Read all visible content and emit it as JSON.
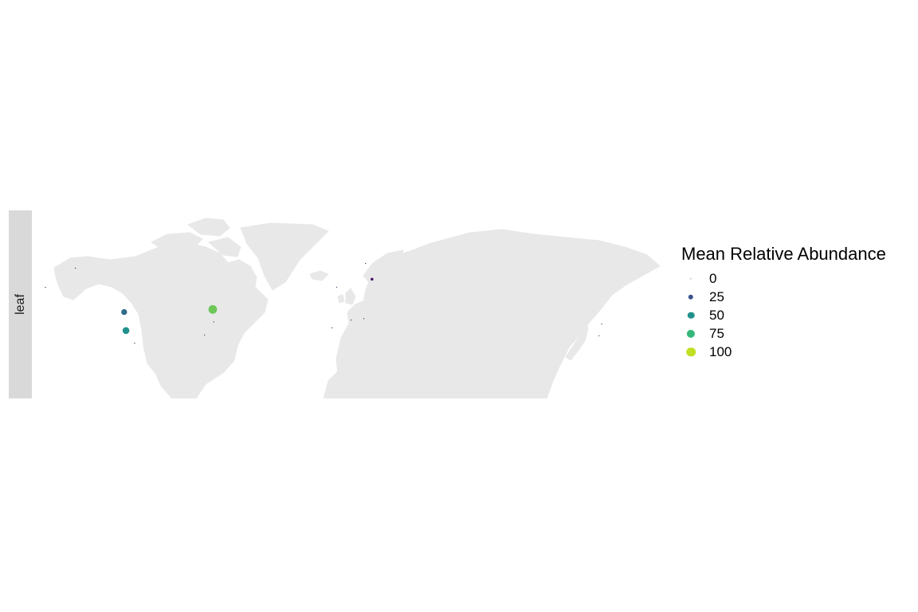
{
  "facet": {
    "label": "leaf"
  },
  "legend": {
    "title": "Mean Relative Abundance",
    "items": [
      {
        "label": "0",
        "value": 0,
        "color": "#440154"
      },
      {
        "label": "25",
        "value": 25,
        "color": "#3b528b"
      },
      {
        "label": "50",
        "value": 50,
        "color": "#21908c"
      },
      {
        "label": "75",
        "value": 75,
        "color": "#35b779"
      },
      {
        "label": "100",
        "value": 100,
        "color": "#c2df23"
      }
    ]
  },
  "colors": {
    "land": "#e8e8e8",
    "strip": "#d9d9d9",
    "background": "#ffffff"
  },
  "chart_data": {
    "type": "scatter",
    "map": "world",
    "size_color_variable": "Mean Relative Abundance",
    "size_range": [
      0,
      100
    ],
    "points": [
      {
        "lon": -149.9,
        "lat": 61.2,
        "value": 0
      },
      {
        "lon": -166.5,
        "lat": 53.9,
        "value": 0
      },
      {
        "lon": -123.0,
        "lat": 44.5,
        "value": 35
      },
      {
        "lon": -122.0,
        "lat": 37.5,
        "value": 50
      },
      {
        "lon": -117.2,
        "lat": 32.7,
        "value": 0
      },
      {
        "lon": -74.0,
        "lat": 45.5,
        "value": 85
      },
      {
        "lon": -73.5,
        "lat": 40.8,
        "value": 0
      },
      {
        "lon": -78.5,
        "lat": 35.8,
        "value": 0
      },
      {
        "lon": -5.5,
        "lat": 54.0,
        "value": 0
      },
      {
        "lon": -8.0,
        "lat": 38.5,
        "value": 0
      },
      {
        "lon": 2.5,
        "lat": 41.5,
        "value": 0
      },
      {
        "lon": 10.5,
        "lat": 63.0,
        "value": 0
      },
      {
        "lon": 9.5,
        "lat": 42.0,
        "value": 0
      },
      {
        "lon": 14.0,
        "lat": 57.0,
        "value": 5
      },
      {
        "lon": 139.5,
        "lat": 35.5,
        "value": 0
      },
      {
        "lon": 141.0,
        "lat": 40.0,
        "value": 0
      }
    ]
  }
}
